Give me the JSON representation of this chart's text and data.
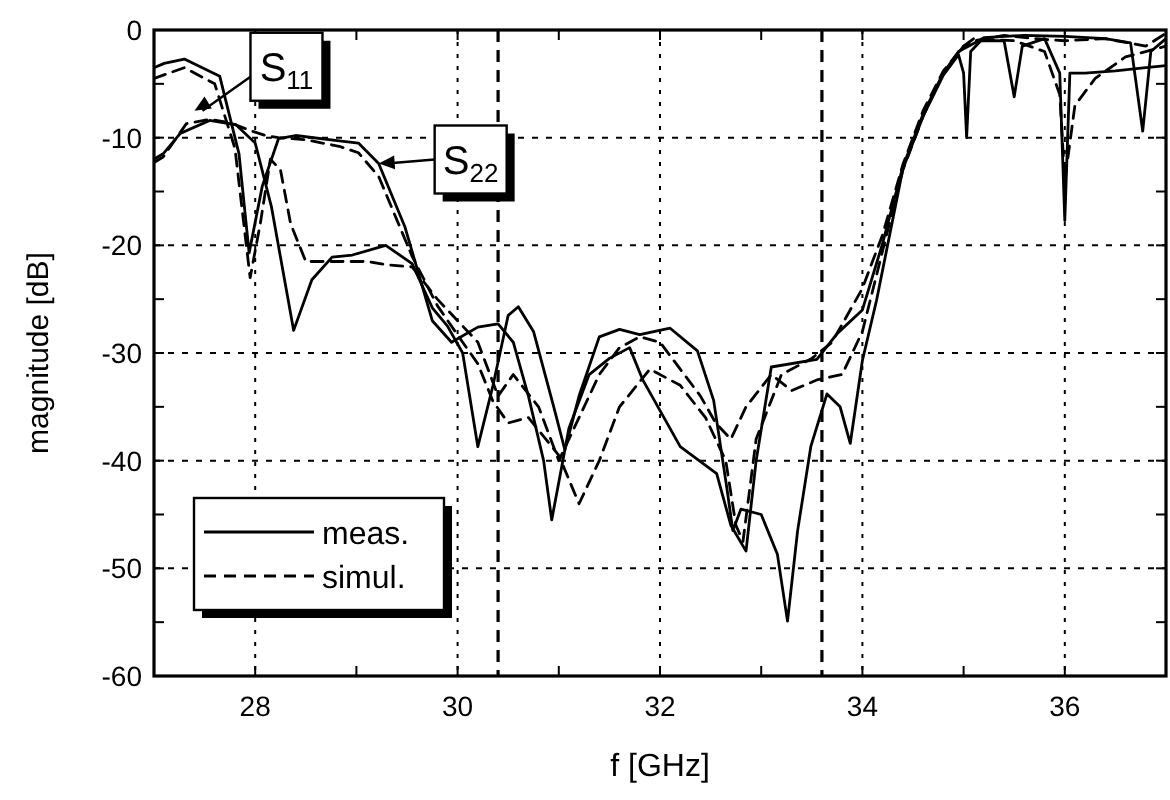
{
  "chart_data": {
    "type": "line",
    "xlabel": "f [GHz]",
    "ylabel": "magnitude [dB]",
    "xlim": [
      27,
      37
    ],
    "ylim": [
      -60,
      0
    ],
    "xticks": [
      28,
      {
        "value": 29,
        "label": null
      },
      30,
      {
        "value": 31,
        "label": null
      },
      32,
      {
        "value": 33,
        "label": null
      },
      34,
      {
        "value": 35,
        "label": null
      },
      36
    ],
    "yticks": [
      -60,
      {
        "value": -55,
        "label": null
      },
      -50,
      {
        "value": -45,
        "label": null
      },
      -40,
      {
        "value": -35,
        "label": null
      },
      -30,
      {
        "value": -25,
        "label": null
      },
      -20,
      {
        "value": -15,
        "label": null
      },
      -10,
      {
        "value": -5,
        "label": null
      },
      0
    ],
    "grid": true,
    "legend": "bottom left",
    "ref_lines": [
      {
        "axis": "x",
        "value": 30.4,
        "line_style": "dashed"
      },
      {
        "axis": "x",
        "value": 33.6,
        "line_style": "dashed"
      }
    ],
    "annotations": [
      {
        "text": "S$_{11}$",
        "x": 27.4,
        "y": -7.5
      },
      {
        "text": "S$_{22}$",
        "x": 29.22,
        "y": -12.4
      }
    ],
    "series": [
      {
        "name": "meas.",
        "color": "#000000",
        "line_style": "solid",
        "x": [
          27.0,
          27.1,
          27.3,
          27.65,
          27.84,
          27.94,
          28.07,
          28.23,
          28.4,
          28.83,
          29.02,
          29.22,
          29.48,
          29.75,
          29.94,
          30.2,
          30.4,
          30.55,
          30.7,
          30.85,
          30.93,
          31.0,
          31.1,
          31.3,
          31.5,
          31.7,
          31.83,
          32.2,
          32.56,
          32.7,
          32.85,
          32.95,
          33.1,
          33.55,
          33.75,
          34.0,
          34.2,
          34.4,
          34.6,
          34.8,
          34.95,
          35.15,
          35.4,
          35.5,
          35.58,
          35.8,
          35.95,
          36.0,
          36.05,
          36.2,
          36.5,
          36.8,
          37.0
        ],
        "values": [
          -3.5,
          -3.1,
          -2.7,
          -4.3,
          -11.5,
          -20.7,
          -14.5,
          -10.1,
          -9.8,
          -10.3,
          -10.5,
          -12.4,
          -18.3,
          -27,
          -29,
          -27.6,
          -27.3,
          -29,
          -34,
          -40,
          -45.5,
          -42,
          -37,
          -32,
          -30.5,
          -29.5,
          -32.5,
          -38.7,
          -41.2,
          -46,
          -48.4,
          -40,
          -31.3,
          -30.6,
          -28.2,
          -26,
          -19.8,
          -12.7,
          -7.8,
          -4,
          -2,
          -1,
          -1,
          -6.2,
          -1.5,
          -0.8,
          -4,
          -17.7,
          -4,
          -4,
          -3.8,
          -3.5,
          -3.3
        ]
      },
      {
        "color": "#000000",
        "line_style": "solid",
        "x": [
          27.0,
          27.09,
          27.26,
          27.55,
          27.81,
          28.0,
          28.16,
          28.38,
          28.56,
          28.76,
          28.96,
          29.29,
          29.55,
          29.75,
          29.9,
          30.05,
          30.2,
          30.35,
          30.5,
          30.6,
          30.75,
          30.95,
          31.06,
          31.2,
          31.4,
          31.6,
          31.8,
          32.1,
          32.37,
          32.53,
          32.66,
          32.72,
          32.8,
          33.0,
          33.16,
          33.26,
          33.36,
          33.49,
          33.65,
          33.78,
          33.88,
          34.0,
          34.14,
          34.4,
          34.6,
          34.8,
          34.95,
          35.0,
          35.03,
          35.07,
          35.2,
          35.6,
          36.0,
          36.4,
          36.65,
          36.77,
          36.85,
          37.0
        ],
        "values": [
          -12,
          -11.5,
          -9.6,
          -8.4,
          -8.8,
          -10.5,
          -16.4,
          -27.9,
          -23.2,
          -21.1,
          -20.9,
          -20,
          -21.7,
          -25.8,
          -27.5,
          -30,
          -38.7,
          -33,
          -26.5,
          -25.7,
          -28,
          -35,
          -39,
          -34,
          -28.5,
          -27.8,
          -28.3,
          -27.7,
          -29.8,
          -34.4,
          -42.5,
          -46.5,
          -44.5,
          -45,
          -48.7,
          -54.9,
          -46.5,
          -38.7,
          -33.8,
          -35,
          -38.4,
          -30.7,
          -25.1,
          -12.9,
          -8,
          -4.2,
          -2.3,
          -4,
          -10,
          -2,
          -0.7,
          -0.5,
          -0.6,
          -0.8,
          -1.2,
          -9.4,
          -2,
          -0.8
        ]
      },
      {
        "name": "simul.",
        "color": "#000000",
        "line_style": "dashed",
        "x": [
          27.0,
          27.09,
          27.32,
          27.55,
          27.75,
          27.94,
          28.1,
          28.23,
          28.5,
          28.83,
          29.02,
          29.22,
          29.55,
          29.8,
          30.05,
          30.2,
          30.35,
          30.5,
          30.7,
          31.0,
          31.2,
          31.4,
          31.6,
          31.9,
          32.2,
          32.45,
          32.65,
          32.75,
          32.82,
          32.95,
          33.2,
          33.5,
          33.7,
          34.0,
          34.2,
          34.4,
          34.6,
          34.8,
          35.0,
          35.1,
          35.5,
          35.8,
          35.95,
          36.0,
          36.1,
          36.3,
          36.6,
          37.0
        ],
        "values": [
          -12.3,
          -11.8,
          -8.7,
          -8.3,
          -8.6,
          -9.3,
          -9.8,
          -10,
          -10.2,
          -10.8,
          -11.4,
          -13.6,
          -21,
          -25.6,
          -29,
          -31,
          -34.5,
          -36.5,
          -36,
          -39.5,
          -44,
          -40,
          -35,
          -31.5,
          -33,
          -36,
          -40,
          -46,
          -47.5,
          -38,
          -32,
          -30.5,
          -29,
          -24,
          -19,
          -12.5,
          -7.5,
          -3.8,
          -1.5,
          -0.8,
          -1,
          -2,
          -6,
          -14,
          -7,
          -4.5,
          -2.5,
          -1.5
        ]
      },
      {
        "color": "#000000",
        "line_style": "dashed",
        "x": [
          27.0,
          27.3,
          27.6,
          27.8,
          27.95,
          28.05,
          28.15,
          28.25,
          28.35,
          28.5,
          28.8,
          29.1,
          29.3,
          29.55,
          29.8,
          30.0,
          30.2,
          30.4,
          30.55,
          30.8,
          31.0,
          31.2,
          31.4,
          31.6,
          31.8,
          32.0,
          32.2,
          32.4,
          32.55,
          32.7,
          32.85,
          33.1,
          33.3,
          33.55,
          33.8,
          34.0,
          34.2,
          34.4,
          34.6,
          34.8,
          35.0,
          35.1,
          35.4,
          35.7,
          36.0,
          36.4,
          36.8,
          37.0
        ],
        "values": [
          -4.5,
          -3.5,
          -5,
          -11,
          -23,
          -18,
          -12,
          -13,
          -18,
          -21.5,
          -21.5,
          -21.5,
          -21.8,
          -22,
          -25,
          -27,
          -29,
          -34,
          -32,
          -35,
          -40,
          -36,
          -32,
          -29.5,
          -28.5,
          -29,
          -31.5,
          -34,
          -36.5,
          -38,
          -35,
          -32,
          -33.5,
          -32.5,
          -32,
          -28,
          -20.5,
          -13,
          -8,
          -4,
          -1.5,
          -1,
          -0.5,
          -0.8,
          -1,
          -0.8,
          -1.5,
          -0.3
        ]
      }
    ]
  }
}
